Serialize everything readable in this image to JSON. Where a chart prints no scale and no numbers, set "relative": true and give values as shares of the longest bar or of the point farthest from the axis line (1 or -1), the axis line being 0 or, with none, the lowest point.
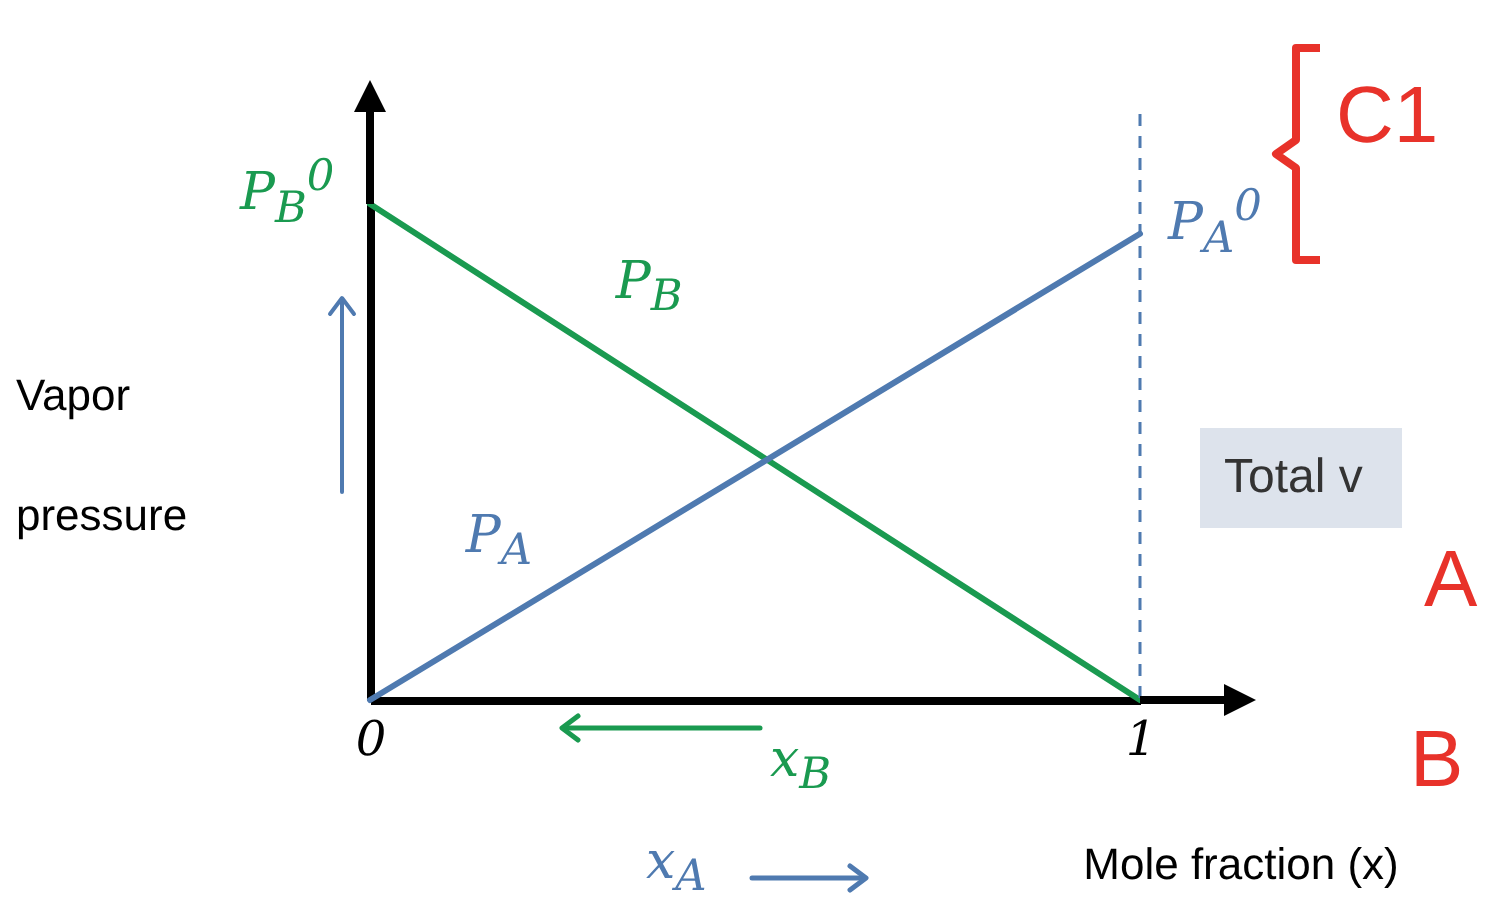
{
  "chart_data": {
    "type": "line",
    "xlabel": "Mole fraction (x)",
    "ylabel": "Vapor pressure",
    "x": [
      0,
      1
    ],
    "xlim": [
      0,
      1
    ],
    "xticks": [
      0,
      1
    ],
    "relative": true,
    "series": [
      {
        "name": "P$_{B}$",
        "color": "#1a9a50",
        "values": [
          1,
          0
        ]
      },
      {
        "name": "P$_{A}$",
        "color": "#4f7ab0",
        "values": [
          0,
          0.94
        ]
      }
    ],
    "ref_lines": [
      {
        "axis": "x",
        "value": 1,
        "color": "#4f7ab0",
        "line_style": "dashed"
      }
    ],
    "annotations": [
      {
        "text": "P$_{B}$$^{0}$",
        "x": 0,
        "y": 1
      },
      {
        "text": "P$_{A}$$^{0}$",
        "x": 1,
        "y": 0.94
      },
      "x$_{B}$",
      "x$_{A}$",
      "Total v",
      "A",
      "B",
      "C1"
    ],
    "grid": false,
    "legend": false,
    "marker": "none",
    "line_style": "solid"
  }
}
